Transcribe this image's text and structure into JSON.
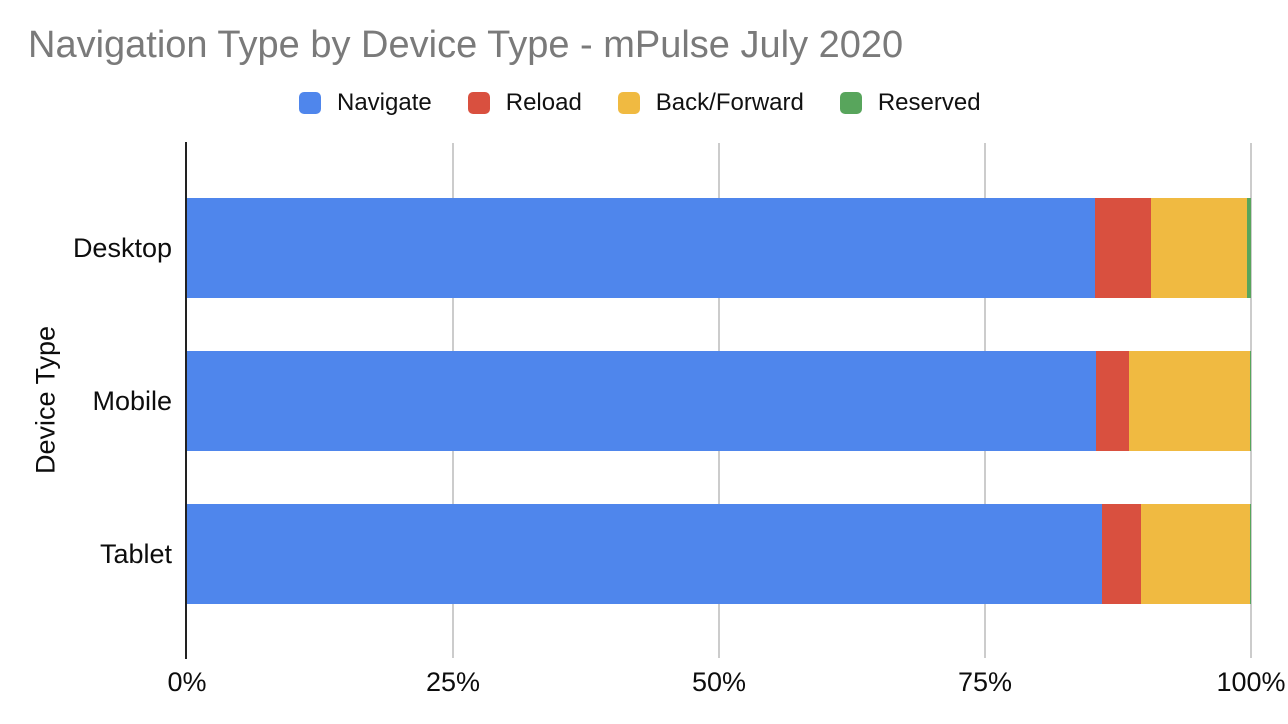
{
  "page": {
    "background": "#ffffff"
  },
  "chart_data": {
    "type": "bar",
    "subtype": "horizontal-stacked-100",
    "title": "Navigation Type by Device Type - mPulse July 2020",
    "title_color": "#7a7a7a",
    "xlabel": "",
    "ylabel": "Device Type",
    "categories": [
      "Desktop",
      "Mobile",
      "Tablet"
    ],
    "series": [
      {
        "name": "Navigate",
        "color": "#4f86ec",
        "values": [
          85.3,
          85.4,
          86.0
        ]
      },
      {
        "name": "Reload",
        "color": "#d9503f",
        "values": [
          5.3,
          3.1,
          3.7
        ]
      },
      {
        "name": "Back/Forward",
        "color": "#f0ba41",
        "values": [
          9.0,
          11.4,
          10.2
        ]
      },
      {
        "name": "Reserved",
        "color": "#58a55c",
        "values": [
          0.4,
          0.1,
          0.1
        ]
      }
    ],
    "x_ticks": [
      {
        "label": "0%",
        "value": 0
      },
      {
        "label": "25%",
        "value": 25
      },
      {
        "label": "50%",
        "value": 50
      },
      {
        "label": "75%",
        "value": 75
      },
      {
        "label": "100%",
        "value": 100
      }
    ],
    "xlim": [
      0,
      100
    ],
    "unit": "%",
    "legend_position": "top",
    "grid": "vertical",
    "gridline_color": "#cccccc",
    "axis_line_color": "#222222"
  }
}
